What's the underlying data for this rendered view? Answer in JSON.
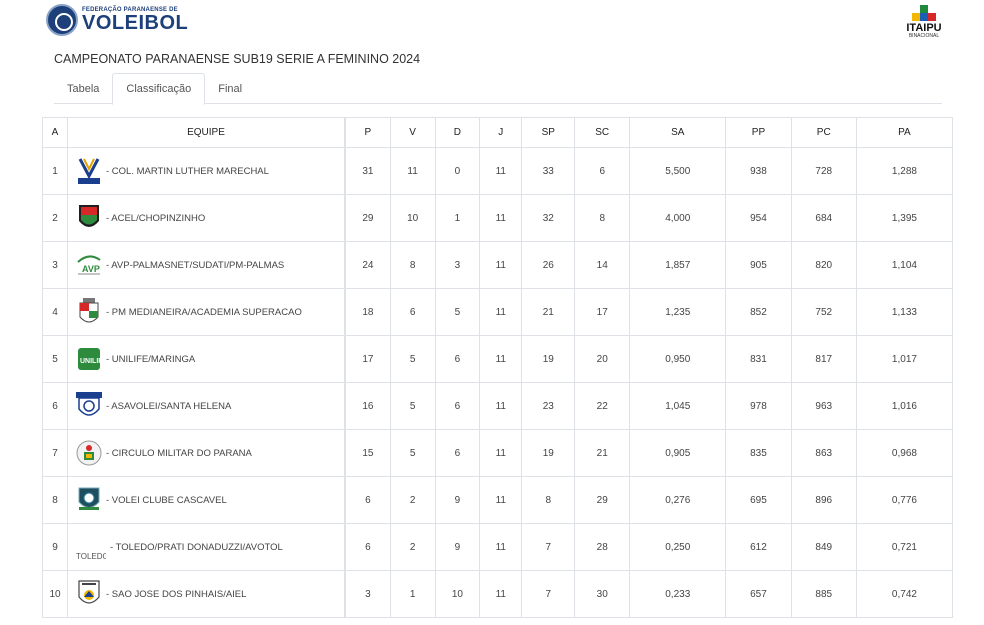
{
  "header": {
    "federation_small": "FEDERAÇÃO PARANAENSE DE",
    "federation_big": "VOLEIBOL",
    "sponsor_name": "ITAIPU",
    "sponsor_sub": "BINACIONAL"
  },
  "page_title": "CAMPEONATO PARANAENSE SUB19 SERIE A FEMININO 2024",
  "tabs": [
    {
      "label": "Tabela"
    },
    {
      "label": "Classificação"
    },
    {
      "label": "Final"
    }
  ],
  "table": {
    "left_headers": [
      "A",
      "EQUIPE"
    ],
    "right_headers": [
      "P",
      "V",
      "D",
      "J",
      "SP",
      "SC",
      "SA",
      "PP",
      "PC",
      "PA"
    ],
    "rows": [
      {
        "pos": "1",
        "team": "- COL. MARTIN LUTHER MARECHAL",
        "logo": "martin-luther-logo",
        "P": "31",
        "V": "11",
        "D": "0",
        "J": "11",
        "SP": "33",
        "SC": "6",
        "SA": "5,500",
        "PP": "938",
        "PC": "728",
        "PA": "1,288"
      },
      {
        "pos": "2",
        "team": "- ACEL/CHOPINZINHO",
        "logo": "acel-logo",
        "P": "29",
        "V": "10",
        "D": "1",
        "J": "11",
        "SP": "32",
        "SC": "8",
        "SA": "4,000",
        "PP": "954",
        "PC": "684",
        "PA": "1,395"
      },
      {
        "pos": "3",
        "team": "- AVP-PALMASNET/SUDATI/PM-PALMAS",
        "logo": "avp-logo",
        "P": "24",
        "V": "8",
        "D": "3",
        "J": "11",
        "SP": "26",
        "SC": "14",
        "SA": "1,857",
        "PP": "905",
        "PC": "820",
        "PA": "1,104"
      },
      {
        "pos": "4",
        "team": "- PM MEDIANEIRA/ACADEMIA SUPERACAO",
        "logo": "medianeira-logo",
        "P": "18",
        "V": "6",
        "D": "5",
        "J": "11",
        "SP": "21",
        "SC": "17",
        "SA": "1,235",
        "PP": "852",
        "PC": "752",
        "PA": "1,133"
      },
      {
        "pos": "5",
        "team": "- UNILIFE/MARINGA",
        "logo": "unilife-logo",
        "P": "17",
        "V": "5",
        "D": "6",
        "J": "11",
        "SP": "19",
        "SC": "20",
        "SA": "0,950",
        "PP": "831",
        "PC": "817",
        "PA": "1,017"
      },
      {
        "pos": "6",
        "team": "- ASAVOLEI/SANTA HELENA",
        "logo": "asavolei-logo",
        "P": "16",
        "V": "5",
        "D": "6",
        "J": "11",
        "SP": "23",
        "SC": "22",
        "SA": "1,045",
        "PP": "978",
        "PC": "963",
        "PA": "1,016"
      },
      {
        "pos": "7",
        "team": "- CIRCULO MILITAR DO PARANA",
        "logo": "circulo-militar-logo",
        "P": "15",
        "V": "5",
        "D": "6",
        "J": "11",
        "SP": "19",
        "SC": "21",
        "SA": "0,905",
        "PP": "835",
        "PC": "863",
        "PA": "0,968"
      },
      {
        "pos": "8",
        "team": "- VOLEI CLUBE CASCAVEL",
        "logo": "cascavel-logo",
        "P": "6",
        "V": "2",
        "D": "9",
        "J": "11",
        "SP": "8",
        "SC": "29",
        "SA": "0,276",
        "PP": "695",
        "PC": "896",
        "PA": "0,776"
      },
      {
        "pos": "9",
        "team": "- TOLEDO/PRATI DONADUZZI/AVOTOL",
        "logo": "broken-image",
        "logo_alt": "TOLEDO",
        "P": "6",
        "V": "2",
        "D": "9",
        "J": "11",
        "SP": "7",
        "SC": "28",
        "SA": "0,250",
        "PP": "612",
        "PC": "849",
        "PA": "0,721"
      },
      {
        "pos": "10",
        "team": "- SAO JOSE DOS PINHAIS/AIEL",
        "logo": "sao-jose-logo",
        "P": "3",
        "V": "1",
        "D": "10",
        "J": "11",
        "SP": "7",
        "SC": "30",
        "SA": "0,233",
        "PP": "657",
        "PC": "885",
        "PA": "0,742"
      }
    ]
  },
  "colors": {
    "federation_blue": "#1d3f7a",
    "border": "#dee2e6",
    "text": "#444444"
  }
}
